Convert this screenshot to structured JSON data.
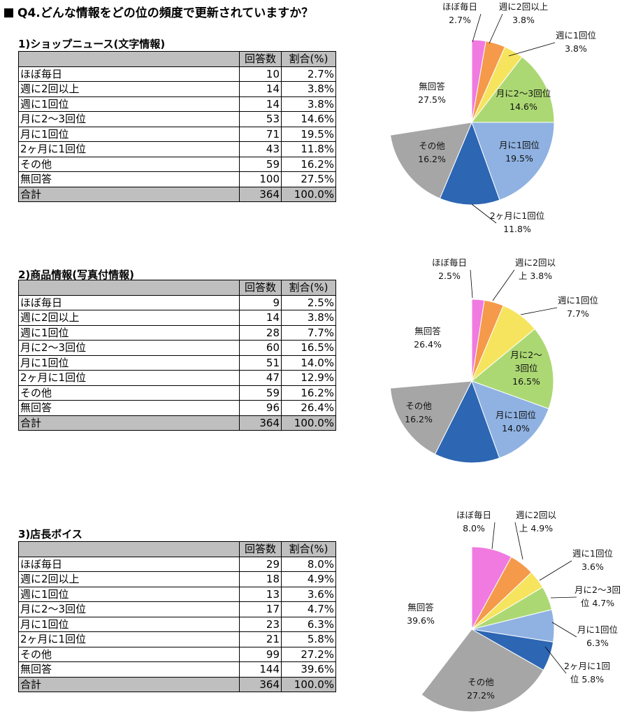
{
  "page_title": "Q4.どんな情報をどの位の頻度で更新されていますか？",
  "chart_data": [
    {
      "type": "pie",
      "title": "1)ショップニュース(文字情報)",
      "columns": [
        "回答数",
        "割合(%)"
      ],
      "rows": [
        {
          "label": "ほぼ毎日",
          "count": 10,
          "pct": "2.7%",
          "color": "#f07ae0"
        },
        {
          "label": "週に2回以上",
          "count": 14,
          "pct": "3.8%",
          "color": "#f49a4a"
        },
        {
          "label": "週に1回位",
          "count": 14,
          "pct": "3.8%",
          "color": "#f6e45e"
        },
        {
          "label": "月に2～3回位",
          "count": 53,
          "pct": "14.6%",
          "color": "#acd873"
        },
        {
          "label": "月に1回位",
          "count": 71,
          "pct": "19.5%",
          "color": "#8fb2e2"
        },
        {
          "label": "2ヶ月に1回位",
          "count": 43,
          "pct": "11.8%",
          "color": "#2d66b3"
        },
        {
          "label": "その他",
          "count": 59,
          "pct": "16.2%",
          "color": "#a6a6a6"
        },
        {
          "label": "無回答",
          "count": 100,
          "pct": "27.5%",
          "color": "#ffffff"
        }
      ],
      "total": {
        "label": "合計",
        "count": 364,
        "pct": "100.0%"
      },
      "pie_labels": [
        [
          "ほぼ毎日",
          "2.7%"
        ],
        [
          "週に2回以上",
          "3.8%"
        ],
        [
          "週に1回位",
          "3.8%"
        ],
        [
          "月に2～3回位",
          "14.6%"
        ],
        [
          "月に1回位",
          "19.5%"
        ],
        [
          "2ヶ月に1回位",
          "11.8%"
        ],
        [
          "その他",
          "16.2%"
        ],
        [
          "無回答",
          "27.5%"
        ]
      ]
    },
    {
      "type": "pie",
      "title": "2)商品情報(写真付情報)",
      "columns": [
        "回答数",
        "割合(%)"
      ],
      "rows": [
        {
          "label": "ほぼ毎日",
          "count": 9,
          "pct": "2.5%",
          "color": "#f07ae0"
        },
        {
          "label": "週に2回以上",
          "count": 14,
          "pct": "3.8%",
          "color": "#f49a4a"
        },
        {
          "label": "週に1回位",
          "count": 28,
          "pct": "7.7%",
          "color": "#f6e45e"
        },
        {
          "label": "月に2～3回位",
          "count": 60,
          "pct": "16.5%",
          "color": "#acd873"
        },
        {
          "label": "月に1回位",
          "count": 51,
          "pct": "14.0%",
          "color": "#8fb2e2"
        },
        {
          "label": "2ヶ月に1回位",
          "count": 47,
          "pct": "12.9%",
          "color": "#2d66b3"
        },
        {
          "label": "その他",
          "count": 59,
          "pct": "16.2%",
          "color": "#a6a6a6"
        },
        {
          "label": "無回答",
          "count": 96,
          "pct": "26.4%",
          "color": "#ffffff"
        }
      ],
      "total": {
        "label": "合計",
        "count": 364,
        "pct": "100.0%"
      },
      "pie_labels": [
        [
          "ほぼ毎日",
          "2.5%"
        ],
        [
          "週に2回以",
          "上 3.8%"
        ],
        [
          "週に1回位",
          "7.7%"
        ],
        [
          "月に2～",
          "3回位",
          "16.5%"
        ],
        [
          "月に1回位",
          "14.0%"
        ],
        [],
        [
          "その他",
          "16.2%"
        ],
        [
          "無回答",
          "26.4%"
        ]
      ]
    },
    {
      "type": "pie",
      "title": "3)店長ボイス",
      "columns": [
        "回答数",
        "割合(%)"
      ],
      "rows": [
        {
          "label": "ほぼ毎日",
          "count": 29,
          "pct": "8.0%",
          "color": "#f07ae0"
        },
        {
          "label": "週に2回以上",
          "count": 18,
          "pct": "4.9%",
          "color": "#f49a4a"
        },
        {
          "label": "週に1回位",
          "count": 13,
          "pct": "3.6%",
          "color": "#f6e45e"
        },
        {
          "label": "月に2～3回位",
          "count": 17,
          "pct": "4.7%",
          "color": "#acd873"
        },
        {
          "label": "月に1回位",
          "count": 23,
          "pct": "6.3%",
          "color": "#8fb2e2"
        },
        {
          "label": "2ヶ月に1回位",
          "count": 21,
          "pct": "5.8%",
          "color": "#2d66b3"
        },
        {
          "label": "その他",
          "count": 99,
          "pct": "27.2%",
          "color": "#a6a6a6"
        },
        {
          "label": "無回答",
          "count": 144,
          "pct": "39.6%",
          "color": "#ffffff"
        }
      ],
      "total": {
        "label": "合計",
        "count": 364,
        "pct": "100.0%"
      },
      "pie_labels": [
        [
          "ほぼ毎日",
          "8.0%"
        ],
        [
          "週に2回以",
          "上 4.9%"
        ],
        [
          "週に1回位",
          "3.6%"
        ],
        [
          "月に2～3回",
          "位 4.7%"
        ],
        [
          "月に1回位",
          "6.3%"
        ],
        [
          "2ヶ月に1回",
          "位 5.8%"
        ],
        [
          "その他",
          "27.2%"
        ],
        [
          "無回答",
          "39.6%"
        ]
      ]
    }
  ]
}
